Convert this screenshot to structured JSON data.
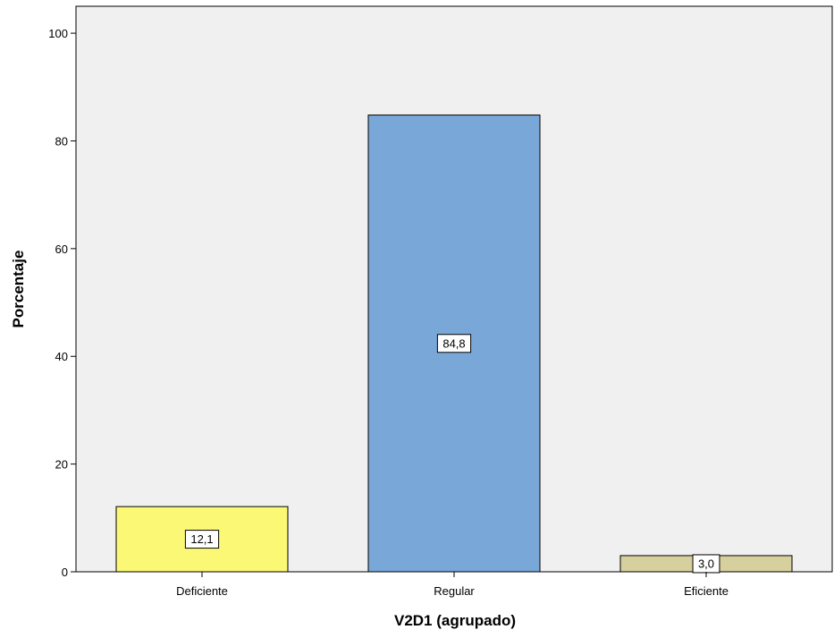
{
  "chart_data": {
    "type": "bar",
    "categories": [
      "Deficiente",
      "Regular",
      "Eficiente"
    ],
    "values": [
      12.1,
      84.8,
      3.0
    ],
    "data_labels": [
      "12,1",
      "84,8",
      "3,0"
    ],
    "bar_colors": [
      "#fbf875",
      "#79a8d8",
      "#d6d09e"
    ],
    "xlabel": "V2D1 (agrupado)",
    "ylabel": "Porcentaje",
    "ylim": [
      0,
      105
    ],
    "yticks": [
      0,
      20,
      40,
      60,
      80,
      100
    ],
    "ytick_labels": [
      "0",
      "20",
      "40",
      "60",
      "80",
      "100"
    ],
    "grid": false,
    "plot_background": "#f0f0f0"
  }
}
